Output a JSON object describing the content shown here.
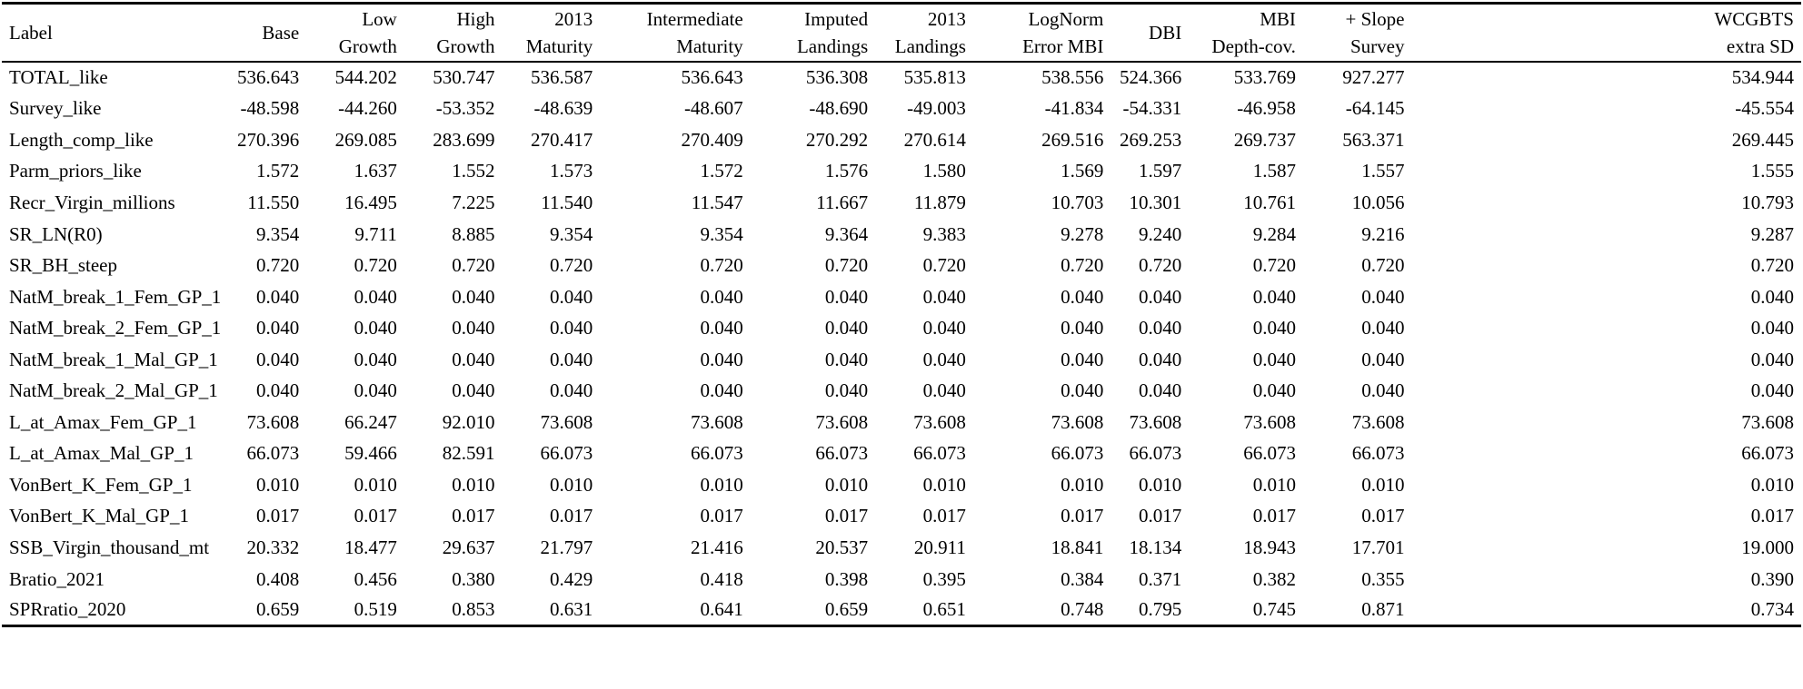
{
  "table": {
    "header": [
      {
        "l1": "Label",
        "l2": ""
      },
      {
        "l1": "Base",
        "l2": ""
      },
      {
        "l1": "Low",
        "l2": "Growth"
      },
      {
        "l1": "High",
        "l2": "Growth"
      },
      {
        "l1": "2013",
        "l2": "Maturity"
      },
      {
        "l1": "Intermediate",
        "l2": "Maturity"
      },
      {
        "l1": "Imputed",
        "l2": "Landings"
      },
      {
        "l1": "2013",
        "l2": "Landings"
      },
      {
        "l1": "LogNorm",
        "l2": "Error MBI"
      },
      {
        "l1": "DBI",
        "l2": ""
      },
      {
        "l1": "MBI",
        "l2": "Depth-cov."
      },
      {
        "l1": "+ Slope",
        "l2": "Survey"
      },
      {
        "l1": "WCGBTS",
        "l2": "extra SD"
      }
    ],
    "rows": [
      [
        "TOTAL_like",
        "536.643",
        "544.202",
        "530.747",
        "536.587",
        "536.643",
        "536.308",
        "535.813",
        "538.556",
        "524.366",
        "533.769",
        "927.277",
        "534.944"
      ],
      [
        "Survey_like",
        "-48.598",
        "-44.260",
        "-53.352",
        "-48.639",
        "-48.607",
        "-48.690",
        "-49.003",
        "-41.834",
        "-54.331",
        "-46.958",
        "-64.145",
        "-45.554"
      ],
      [
        "Length_comp_like",
        "270.396",
        "269.085",
        "283.699",
        "270.417",
        "270.409",
        "270.292",
        "270.614",
        "269.516",
        "269.253",
        "269.737",
        "563.371",
        "269.445"
      ],
      [
        "Parm_priors_like",
        "1.572",
        "1.637",
        "1.552",
        "1.573",
        "1.572",
        "1.576",
        "1.580",
        "1.569",
        "1.597",
        "1.587",
        "1.557",
        "1.555"
      ],
      [
        "Recr_Virgin_millions",
        "11.550",
        "16.495",
        "7.225",
        "11.540",
        "11.547",
        "11.667",
        "11.879",
        "10.703",
        "10.301",
        "10.761",
        "10.056",
        "10.793"
      ],
      [
        "SR_LN(R0)",
        "9.354",
        "9.711",
        "8.885",
        "9.354",
        "9.354",
        "9.364",
        "9.383",
        "9.278",
        "9.240",
        "9.284",
        "9.216",
        "9.287"
      ],
      [
        "SR_BH_steep",
        "0.720",
        "0.720",
        "0.720",
        "0.720",
        "0.720",
        "0.720",
        "0.720",
        "0.720",
        "0.720",
        "0.720",
        "0.720",
        "0.720"
      ],
      [
        "NatM_break_1_Fem_GP_1",
        "0.040",
        "0.040",
        "0.040",
        "0.040",
        "0.040",
        "0.040",
        "0.040",
        "0.040",
        "0.040",
        "0.040",
        "0.040",
        "0.040"
      ],
      [
        "NatM_break_2_Fem_GP_1",
        "0.040",
        "0.040",
        "0.040",
        "0.040",
        "0.040",
        "0.040",
        "0.040",
        "0.040",
        "0.040",
        "0.040",
        "0.040",
        "0.040"
      ],
      [
        "NatM_break_1_Mal_GP_1",
        "0.040",
        "0.040",
        "0.040",
        "0.040",
        "0.040",
        "0.040",
        "0.040",
        "0.040",
        "0.040",
        "0.040",
        "0.040",
        "0.040"
      ],
      [
        "NatM_break_2_Mal_GP_1",
        "0.040",
        "0.040",
        "0.040",
        "0.040",
        "0.040",
        "0.040",
        "0.040",
        "0.040",
        "0.040",
        "0.040",
        "0.040",
        "0.040"
      ],
      [
        "L_at_Amax_Fem_GP_1",
        "73.608",
        "66.247",
        "92.010",
        "73.608",
        "73.608",
        "73.608",
        "73.608",
        "73.608",
        "73.608",
        "73.608",
        "73.608",
        "73.608"
      ],
      [
        "L_at_Amax_Mal_GP_1",
        "66.073",
        "59.466",
        "82.591",
        "66.073",
        "66.073",
        "66.073",
        "66.073",
        "66.073",
        "66.073",
        "66.073",
        "66.073",
        "66.073"
      ],
      [
        "VonBert_K_Fem_GP_1",
        "0.010",
        "0.010",
        "0.010",
        "0.010",
        "0.010",
        "0.010",
        "0.010",
        "0.010",
        "0.010",
        "0.010",
        "0.010",
        "0.010"
      ],
      [
        "VonBert_K_Mal_GP_1",
        "0.017",
        "0.017",
        "0.017",
        "0.017",
        "0.017",
        "0.017",
        "0.017",
        "0.017",
        "0.017",
        "0.017",
        "0.017",
        "0.017"
      ],
      [
        "SSB_Virgin_thousand_mt",
        "20.332",
        "18.477",
        "29.637",
        "21.797",
        "21.416",
        "20.537",
        "20.911",
        "18.841",
        "18.134",
        "18.943",
        "17.701",
        "19.000"
      ],
      [
        "Bratio_2021",
        "0.408",
        "0.456",
        "0.380",
        "0.429",
        "0.418",
        "0.398",
        "0.395",
        "0.384",
        "0.371",
        "0.382",
        "0.355",
        "0.390"
      ],
      [
        "SPRratio_2020",
        "0.659",
        "0.519",
        "0.853",
        "0.631",
        "0.641",
        "0.659",
        "0.651",
        "0.748",
        "0.795",
        "0.745",
        "0.871",
        "0.734"
      ]
    ]
  }
}
